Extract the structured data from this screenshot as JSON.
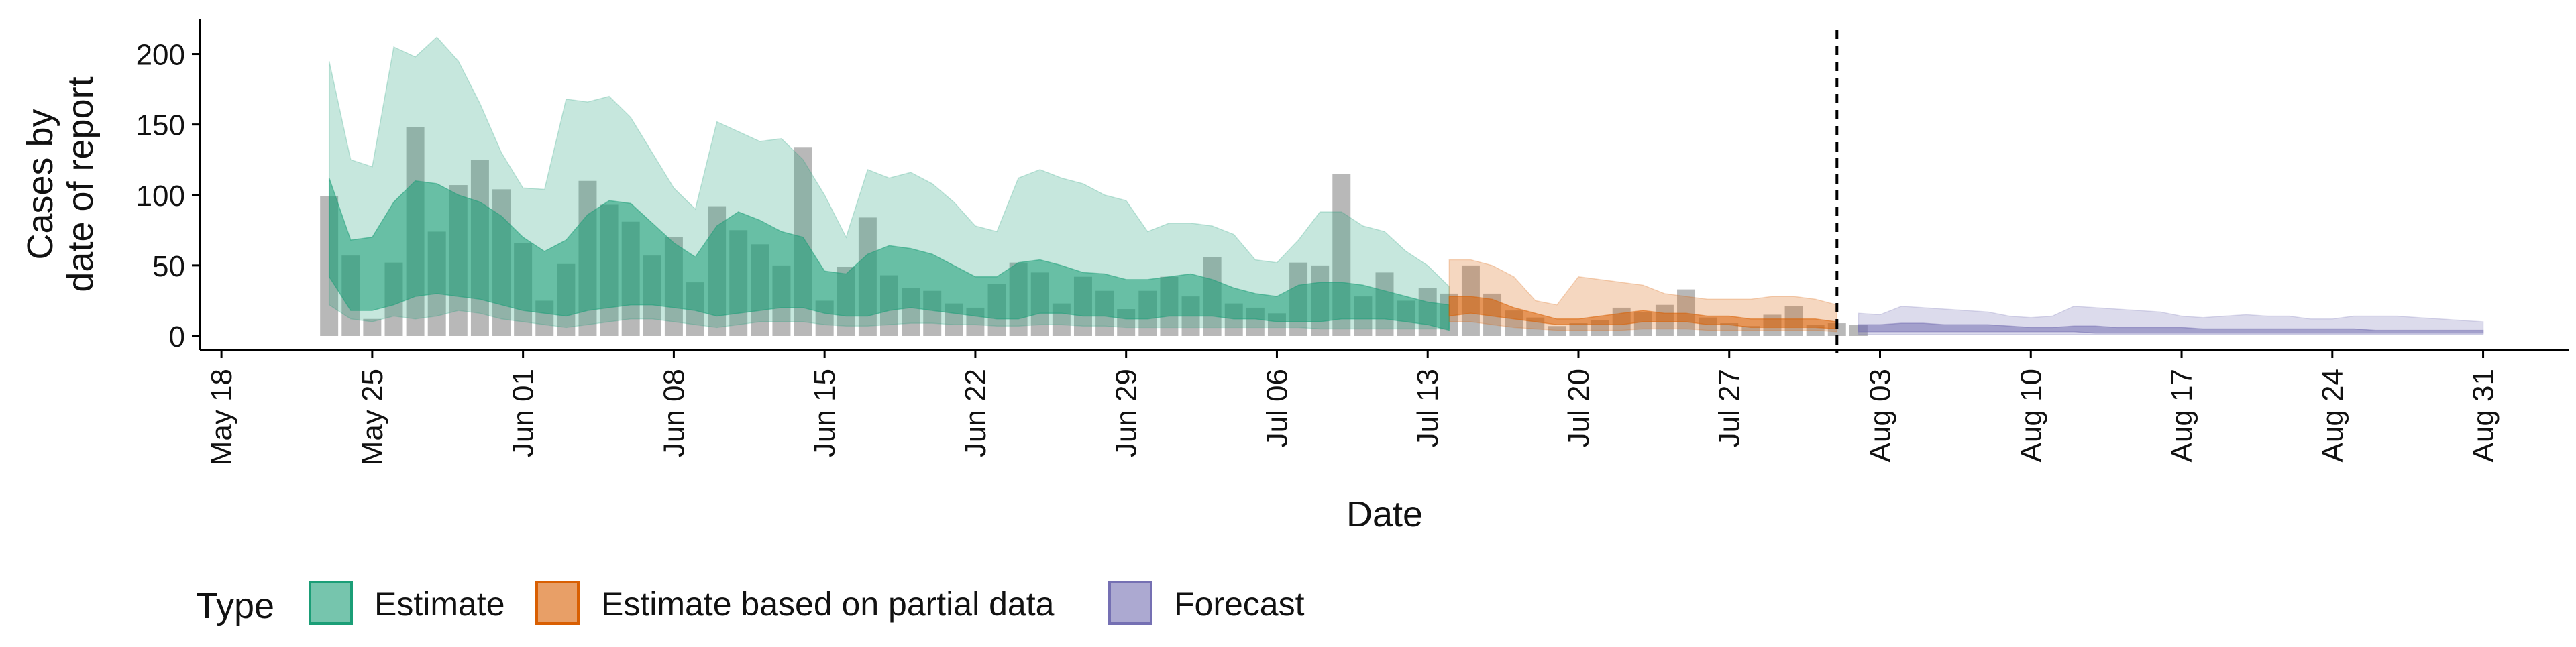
{
  "chart_data": {
    "type": "area",
    "xlabel": "Date",
    "ylabel_lines": [
      "Cases by",
      "date of report"
    ],
    "ylim": [
      -10,
      225
    ],
    "xlim": [
      "2020-05-17",
      "2020-09-04"
    ],
    "x_ticks": [
      "2020-05-18",
      "2020-05-25",
      "2020-06-01",
      "2020-06-08",
      "2020-06-15",
      "2020-06-22",
      "2020-06-29",
      "2020-07-06",
      "2020-07-13",
      "2020-07-20",
      "2020-07-27",
      "2020-08-03",
      "2020-08-10",
      "2020-08-17",
      "2020-08-24",
      "2020-08-31"
    ],
    "x_tick_labels": [
      "May 18",
      "May 25",
      "Jun 01",
      "Jun 08",
      "Jun 15",
      "Jun 22",
      "Jun 29",
      "Jul 06",
      "Jul 13",
      "Jul 20",
      "Jul 27",
      "Aug 03",
      "Aug 10",
      "Aug 17",
      "Aug 24",
      "Aug 31"
    ],
    "y_ticks": [
      0,
      50,
      100,
      150,
      200
    ],
    "forecast_line_date": "2020-08-01",
    "grid": false,
    "legend": {
      "title": "Type",
      "position": "bottom",
      "items": [
        {
          "label": "Estimate",
          "color": "#1b9e77"
        },
        {
          "label": "Estimate based on partial data",
          "color": "#d95f02"
        },
        {
          "label": "Forecast",
          "color": "#7570b3"
        }
      ]
    },
    "bars": {
      "color": "#a6a6a6",
      "start_date": "2020-05-23",
      "values": [
        99,
        57,
        12,
        52,
        148,
        74,
        107,
        125,
        104,
        66,
        25,
        51,
        110,
        93,
        81,
        57,
        70,
        38,
        92,
        75,
        65,
        50,
        134,
        25,
        49,
        84,
        43,
        34,
        32,
        23,
        20,
        37,
        52,
        45,
        23,
        42,
        32,
        19,
        32,
        42,
        28,
        56,
        23,
        20,
        16,
        52,
        50,
        115,
        28,
        45,
        25,
        34,
        30,
        50,
        30,
        18,
        13,
        7,
        9,
        11,
        20,
        17,
        22,
        33,
        13,
        9,
        7,
        15,
        21,
        8,
        9,
        8
      ]
    },
    "series": [
      {
        "name": "Estimate",
        "color": "#1b9e77",
        "start_date": "2020-05-23",
        "outer_low": [
          22,
          12,
          10,
          14,
          12,
          14,
          18,
          16,
          12,
          10,
          8,
          6,
          8,
          10,
          12,
          12,
          10,
          8,
          6,
          8,
          10,
          10,
          10,
          8,
          7,
          7,
          8,
          9,
          9,
          8,
          8,
          7,
          7,
          8,
          8,
          7,
          7,
          6,
          6,
          6,
          6,
          6,
          6,
          6,
          6,
          6,
          5,
          5,
          5,
          5,
          5,
          5,
          5
        ],
        "inner_low": [
          42,
          18,
          18,
          22,
          28,
          30,
          28,
          26,
          22,
          18,
          16,
          14,
          18,
          20,
          22,
          22,
          20,
          18,
          14,
          16,
          18,
          20,
          20,
          16,
          14,
          14,
          18,
          20,
          18,
          16,
          14,
          12,
          12,
          16,
          16,
          14,
          14,
          12,
          12,
          14,
          14,
          14,
          12,
          12,
          10,
          10,
          10,
          12,
          12,
          12,
          10,
          8,
          4
        ],
        "inner_high": [
          112,
          68,
          70,
          95,
          110,
          108,
          100,
          95,
          85,
          70,
          60,
          68,
          86,
          96,
          94,
          80,
          66,
          56,
          78,
          88,
          82,
          74,
          70,
          46,
          44,
          58,
          64,
          62,
          58,
          50,
          42,
          42,
          52,
          54,
          50,
          45,
          44,
          40,
          40,
          42,
          44,
          40,
          34,
          30,
          28,
          36,
          38,
          38,
          36,
          32,
          28,
          24,
          22
        ],
        "outer_high": [
          195,
          125,
          120,
          205,
          198,
          212,
          195,
          165,
          130,
          105,
          104,
          168,
          166,
          170,
          155,
          130,
          105,
          90,
          152,
          145,
          138,
          140,
          125,
          100,
          70,
          118,
          112,
          116,
          108,
          95,
          78,
          74,
          112,
          118,
          112,
          108,
          100,
          96,
          74,
          80,
          80,
          78,
          72,
          54,
          52,
          68,
          88,
          88,
          78,
          74,
          60,
          50,
          35
        ]
      },
      {
        "name": "Estimate based on partial data",
        "color": "#d95f02",
        "start_date": "2020-07-14",
        "outer_low": [
          10,
          10,
          8,
          6,
          5,
          4,
          4,
          4,
          4,
          5,
          5,
          5,
          4,
          4,
          4,
          4,
          4,
          4,
          3
        ],
        "inner_low": [
          14,
          16,
          14,
          12,
          10,
          8,
          8,
          8,
          8,
          10,
          10,
          10,
          8,
          8,
          6,
          6,
          6,
          6,
          5
        ],
        "inner_high": [
          28,
          28,
          26,
          20,
          16,
          12,
          12,
          14,
          16,
          18,
          16,
          16,
          14,
          14,
          12,
          12,
          12,
          12,
          10
        ],
        "outer_high": [
          54,
          54,
          50,
          42,
          25,
          22,
          42,
          40,
          38,
          36,
          30,
          28,
          26,
          26,
          26,
          28,
          28,
          26,
          22
        ]
      },
      {
        "name": "Forecast",
        "color": "#7570b3",
        "start_date": "2020-08-02",
        "outer_low": [
          1,
          1,
          1,
          1,
          1,
          1,
          1,
          1,
          1,
          1,
          1,
          1,
          1,
          1,
          1,
          1,
          1,
          1,
          1,
          1,
          1,
          1,
          1,
          1,
          1,
          1,
          1,
          1,
          1,
          1
        ],
        "inner_low": [
          3,
          3,
          3,
          3,
          3,
          3,
          3,
          3,
          3,
          3,
          3,
          2,
          2,
          2,
          2,
          2,
          2,
          2,
          2,
          2,
          2,
          2,
          2,
          2,
          2,
          2,
          2,
          2,
          2,
          2
        ],
        "inner_high": [
          8,
          8,
          9,
          9,
          8,
          8,
          8,
          7,
          6,
          6,
          7,
          7,
          6,
          6,
          6,
          6,
          5,
          5,
          5,
          5,
          5,
          5,
          5,
          5,
          4,
          4,
          4,
          4,
          4,
          4
        ],
        "outer_high": [
          16,
          15,
          21,
          20,
          19,
          18,
          17,
          14,
          13,
          14,
          21,
          20,
          19,
          18,
          17,
          14,
          13,
          14,
          15,
          14,
          14,
          12,
          12,
          14,
          14,
          14,
          13,
          12,
          11,
          10
        ]
      }
    ]
  }
}
